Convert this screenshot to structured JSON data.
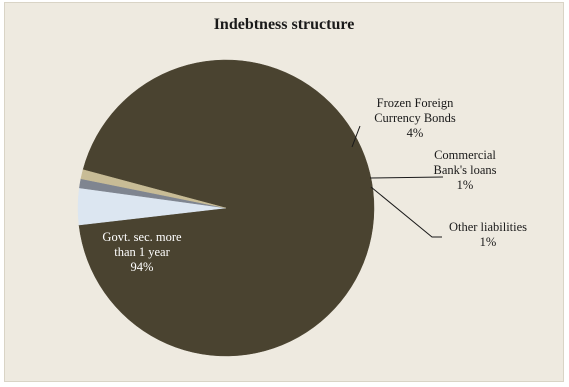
{
  "chart_data": {
    "type": "pie",
    "title": "Indebtness structure",
    "slices": [
      {
        "name": "Govt. sec. more than 1 year",
        "lines": [
          "Govt. sec. more",
          "than 1 year"
        ],
        "label": "94%",
        "value": 94,
        "color": "#4a4330"
      },
      {
        "name": "Frozen Foreign Currency Bonds",
        "lines": [
          "Frozen Foreign",
          "Currency Bonds"
        ],
        "label": "4%",
        "value": 4,
        "color": "#dce6f1"
      },
      {
        "name": "Commercial Bank's loans",
        "lines": [
          "Commercial",
          "Bank's loans"
        ],
        "label": "1%",
        "value": 1,
        "color": "#7f8590"
      },
      {
        "name": "Other liabilities",
        "lines": [
          "Other liabilities"
        ],
        "label": "1%",
        "value": 1,
        "color": "#c8bc96"
      }
    ],
    "start_angle_deg": 195,
    "direction": "clockwise",
    "legend": "none",
    "data_labels": "category-name-and-percent"
  }
}
